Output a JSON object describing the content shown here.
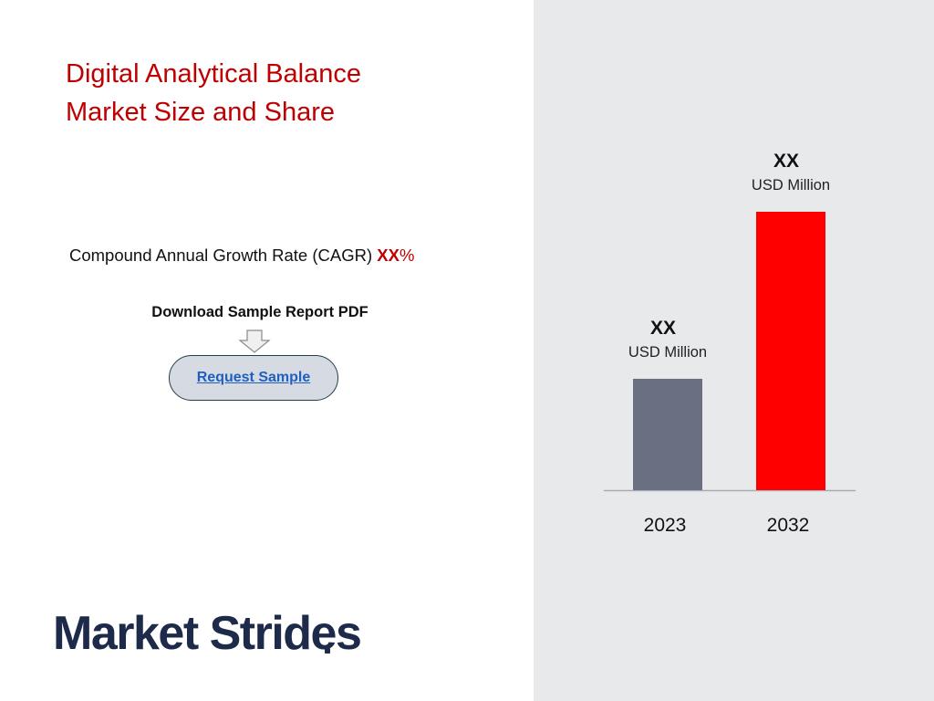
{
  "title": {
    "line1": "Digital Analytical Balance",
    "line2": "Market Size and Share"
  },
  "cagr": {
    "label": "Compound Annual Growth Rate (CAGR)",
    "value": "XX",
    "unit": "%"
  },
  "download": {
    "label": "Download Sample Report PDF",
    "button_label": "Request Sample"
  },
  "logo": {
    "text": "Market Strides"
  },
  "colors": {
    "title": "#c00000",
    "bar_2023": "#6a7081",
    "bar_2032": "#ff0000",
    "panel_bg": "#e8e9eb",
    "logo": "#1e2a4a"
  },
  "chart_data": {
    "type": "bar",
    "categories": [
      "2023",
      "2032"
    ],
    "values": [
      40,
      100
    ],
    "value_labels": [
      {
        "amount": "XX",
        "unit": "USD Million"
      },
      {
        "amount": "XX",
        "unit": "USD Million"
      }
    ],
    "colors": [
      "#6a7081",
      "#ff0000"
    ],
    "grid": false,
    "legend": "none"
  }
}
